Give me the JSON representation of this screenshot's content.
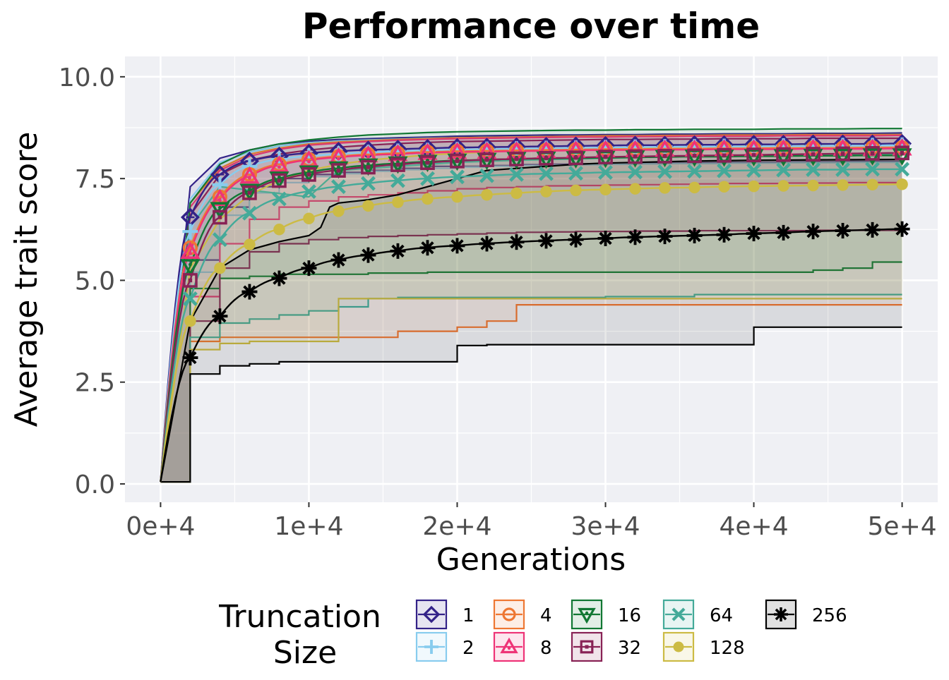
{
  "chart_data": {
    "type": "line",
    "title": "Performance over time",
    "xlabel": "Generations",
    "ylabel": "Average trait score",
    "xlim": [
      -2400,
      52400
    ],
    "ylim": [
      -0.45,
      10.5
    ],
    "x_ticks": [
      0,
      10000,
      20000,
      30000,
      40000,
      50000
    ],
    "x_tick_labels": [
      "0e+4",
      "1e+4",
      "2e+4",
      "3e+4",
      "4e+4",
      "5e+4"
    ],
    "y_ticks": [
      0,
      2.5,
      5,
      7.5,
      10
    ],
    "y_tick_labels": [
      "0.0",
      "2.5",
      "5.0",
      "7.5",
      "10.0"
    ],
    "grid": true,
    "legend": {
      "title_lines": [
        "Truncation",
        "Size"
      ],
      "placement": "bottom"
    },
    "x": [
      0,
      2000,
      4000,
      6000,
      8000,
      10000,
      12000,
      14000,
      16000,
      18000,
      20000,
      22000,
      24000,
      26000,
      28000,
      30000,
      32000,
      34000,
      36000,
      38000,
      40000,
      42000,
      44000,
      46000,
      48000,
      50000
    ],
    "series": [
      {
        "name": "1",
        "color": "#332288",
        "marker": "diamond",
        "values": [
          0.05,
          6.55,
          7.6,
          7.93,
          8.05,
          8.12,
          8.17,
          8.2,
          8.22,
          8.24,
          8.26,
          8.27,
          8.28,
          8.29,
          8.3,
          8.31,
          8.32,
          8.32,
          8.33,
          8.33,
          8.34,
          8.34,
          8.35,
          8.35,
          8.35,
          8.36
        ],
        "band_low": [
          0.05,
          5.5,
          6.8,
          7.3,
          7.5,
          7.6,
          7.65,
          7.7,
          7.75,
          7.8,
          7.8,
          7.82,
          7.84,
          7.85,
          7.86,
          7.87,
          7.88,
          7.88,
          7.89,
          7.9,
          7.9,
          7.91,
          7.91,
          7.92,
          7.92,
          7.92
        ],
        "band_high": [
          0.05,
          7.3,
          8.0,
          8.2,
          8.35,
          8.42,
          8.46,
          8.48,
          8.5,
          8.52,
          8.54,
          8.55,
          8.56,
          8.57,
          8.57,
          8.58,
          8.58,
          8.59,
          8.59,
          8.6,
          8.6,
          8.6,
          8.61,
          8.61,
          8.61,
          8.62
        ]
      },
      {
        "name": "2",
        "color": "#88ccee",
        "marker": "plus",
        "values": [
          0.05,
          6.2,
          7.35,
          7.8,
          7.97,
          8.05,
          8.1,
          8.14,
          8.17,
          8.19,
          8.21,
          8.22,
          8.23,
          8.24,
          8.25,
          8.26,
          8.27,
          8.28,
          8.28,
          8.29,
          8.29,
          8.3,
          8.3,
          8.31,
          8.31,
          8.32
        ],
        "band_low": [
          0.05,
          5.2,
          6.6,
          7.15,
          7.4,
          7.55,
          7.62,
          7.68,
          7.72,
          7.75,
          7.78,
          7.8,
          7.82,
          7.83,
          7.84,
          7.85,
          7.86,
          7.87,
          7.87,
          7.88,
          7.88,
          7.89,
          7.89,
          7.9,
          7.9,
          7.9
        ],
        "band_high": [
          0.05,
          7.0,
          7.9,
          8.15,
          8.3,
          8.38,
          8.42,
          8.45,
          8.47,
          8.49,
          8.5,
          8.51,
          8.52,
          8.53,
          8.54,
          8.54,
          8.55,
          8.55,
          8.56,
          8.56,
          8.56,
          8.57,
          8.57,
          8.57,
          8.58,
          8.58
        ]
      },
      {
        "name": "4",
        "color": "#ee7733",
        "marker": "circle-minus",
        "values": [
          0.05,
          5.8,
          7.05,
          7.6,
          7.85,
          7.97,
          8.04,
          8.09,
          8.12,
          8.15,
          8.17,
          8.18,
          8.19,
          8.2,
          8.21,
          8.22,
          8.22,
          8.23,
          8.23,
          8.24,
          8.24,
          8.25,
          8.25,
          8.25,
          8.26,
          8.26
        ],
        "band_low": [
          0.05,
          3.5,
          3.6,
          3.6,
          3.6,
          3.6,
          3.6,
          3.6,
          3.75,
          3.75,
          3.85,
          4.0,
          4.4,
          4.4,
          4.4,
          4.4,
          4.4,
          4.4,
          4.4,
          4.4,
          4.4,
          4.4,
          4.4,
          4.4,
          4.4,
          4.4
        ],
        "band_high": [
          0.05,
          6.9,
          7.75,
          8.1,
          8.25,
          8.35,
          8.4,
          8.43,
          8.46,
          8.48,
          8.5,
          8.51,
          8.52,
          8.53,
          8.54,
          8.55,
          8.55,
          8.56,
          8.56,
          8.57,
          8.57,
          8.57,
          8.58,
          8.58,
          8.58,
          8.58
        ]
      },
      {
        "name": "8",
        "color": "#ee3377",
        "marker": "triangle",
        "values": [
          0.05,
          5.7,
          7.0,
          7.55,
          7.82,
          7.95,
          8.02,
          8.07,
          8.1,
          8.13,
          8.15,
          8.16,
          8.17,
          8.18,
          8.19,
          8.2,
          8.2,
          8.21,
          8.21,
          8.22,
          8.22,
          8.22,
          8.23,
          8.23,
          8.23,
          8.24
        ],
        "band_low": [
          0.05,
          4.6,
          5.9,
          6.5,
          6.8,
          6.95,
          7.05,
          7.1,
          7.15,
          7.2,
          7.25,
          7.28,
          7.3,
          7.32,
          7.33,
          7.34,
          7.35,
          7.36,
          7.37,
          7.38,
          7.38,
          7.39,
          7.39,
          7.4,
          7.4,
          7.4
        ],
        "band_high": [
          0.05,
          6.8,
          7.7,
          8.05,
          8.22,
          8.32,
          8.37,
          8.41,
          8.44,
          8.46,
          8.48,
          8.49,
          8.5,
          8.51,
          8.52,
          8.52,
          8.53,
          8.53,
          8.54,
          8.54,
          8.54,
          8.55,
          8.55,
          8.55,
          8.55,
          8.56
        ]
      },
      {
        "name": "16",
        "color": "#117733",
        "marker": "triangle-down",
        "values": [
          0.05,
          5.35,
          6.75,
          7.2,
          7.5,
          7.65,
          7.75,
          7.82,
          7.87,
          7.91,
          7.94,
          7.96,
          7.98,
          7.99,
          8.0,
          8.01,
          8.02,
          8.03,
          8.04,
          8.04,
          8.05,
          8.05,
          8.06,
          8.06,
          8.07,
          8.07
        ],
        "band_low": [
          0.05,
          4.8,
          5.05,
          5.1,
          5.15,
          5.15,
          5.15,
          5.18,
          5.18,
          5.2,
          5.2,
          5.2,
          5.2,
          5.2,
          5.2,
          5.2,
          5.2,
          5.2,
          5.2,
          5.2,
          5.2,
          5.2,
          5.25,
          5.3,
          5.45,
          5.45
        ],
        "band_high": [
          0.05,
          6.9,
          7.85,
          8.2,
          8.35,
          8.45,
          8.52,
          8.57,
          8.6,
          8.63,
          8.65,
          8.66,
          8.67,
          8.68,
          8.69,
          8.69,
          8.7,
          8.7,
          8.71,
          8.71,
          8.71,
          8.72,
          8.72,
          8.72,
          8.73,
          8.73
        ]
      },
      {
        "name": "32",
        "color": "#882255",
        "marker": "square",
        "values": [
          0.05,
          5.0,
          6.55,
          7.15,
          7.45,
          7.6,
          7.7,
          7.78,
          7.84,
          7.89,
          7.93,
          7.96,
          7.98,
          8.0,
          8.01,
          8.03,
          8.04,
          8.05,
          8.06,
          8.07,
          8.08,
          8.09,
          8.1,
          8.11,
          8.12,
          8.13
        ],
        "band_low": [
          0.05,
          4.0,
          5.3,
          5.7,
          5.9,
          6.0,
          6.05,
          6.08,
          6.1,
          6.12,
          6.14,
          6.16,
          6.18,
          6.19,
          6.2,
          6.2,
          6.21,
          6.21,
          6.22,
          6.22,
          6.22,
          6.22,
          6.23,
          6.23,
          6.23,
          6.23
        ],
        "band_high": [
          0.05,
          6.6,
          7.6,
          7.95,
          8.1,
          8.2,
          8.27,
          8.32,
          8.36,
          8.39,
          8.41,
          8.42,
          8.43,
          8.44,
          8.45,
          8.46,
          8.46,
          8.47,
          8.47,
          8.48,
          8.48,
          8.48,
          8.49,
          8.49,
          8.49,
          8.49
        ]
      },
      {
        "name": "64",
        "color": "#44aa99",
        "marker": "x",
        "values": [
          0.05,
          4.55,
          6.0,
          6.65,
          7.0,
          7.18,
          7.3,
          7.38,
          7.45,
          7.5,
          7.54,
          7.57,
          7.6,
          7.62,
          7.63,
          7.65,
          7.66,
          7.67,
          7.68,
          7.69,
          7.7,
          7.71,
          7.72,
          7.72,
          7.73,
          7.73
        ],
        "band_low": [
          0.05,
          3.6,
          3.95,
          4.05,
          4.15,
          4.25,
          4.35,
          4.55,
          4.58,
          4.58,
          4.58,
          4.58,
          4.58,
          4.58,
          4.58,
          4.6,
          4.6,
          4.6,
          4.65,
          4.65,
          4.65,
          4.65,
          4.65,
          4.65,
          4.65,
          4.65
        ],
        "band_high": [
          0.05,
          6.3,
          7.3,
          7.65,
          7.85,
          7.98,
          8.05,
          8.1,
          8.14,
          8.17,
          8.2,
          8.22,
          8.24,
          8.25,
          8.26,
          8.27,
          8.28,
          8.29,
          8.3,
          8.3,
          8.31,
          8.31,
          8.32,
          8.32,
          8.33,
          8.33
        ],
        "upper_path": [
          [
            0,
            0.05
          ],
          [
            2000,
            6.3
          ],
          [
            4000,
            7.3
          ],
          [
            10000,
            7.05
          ],
          [
            11500,
            7.55
          ],
          [
            12000,
            7.7
          ],
          [
            14000,
            7.75
          ],
          [
            20000,
            7.9
          ],
          [
            24000,
            7.95
          ],
          [
            36000,
            8.05
          ],
          [
            50000,
            8.1
          ]
        ]
      },
      {
        "name": "128",
        "color": "#ccbb44",
        "marker": "dot",
        "values": [
          0.05,
          4.0,
          5.3,
          5.88,
          6.25,
          6.52,
          6.7,
          6.83,
          6.92,
          7.0,
          7.05,
          7.1,
          7.14,
          7.18,
          7.21,
          7.23,
          7.25,
          7.27,
          7.28,
          7.3,
          7.31,
          7.32,
          7.33,
          7.34,
          7.35,
          7.36
        ],
        "band_low": [
          0.05,
          3.3,
          3.45,
          3.5,
          3.5,
          3.5,
          4.55,
          4.55,
          4.55,
          4.55,
          4.55,
          4.55,
          4.55,
          4.55,
          4.55,
          4.55,
          4.55,
          4.55,
          4.55,
          4.55,
          4.55,
          4.55,
          4.55,
          4.55,
          4.55,
          4.55
        ],
        "band_high": [
          0.05,
          5.3,
          6.5,
          7.1,
          7.45,
          7.7,
          7.85,
          7.95,
          8.02,
          8.08,
          8.12,
          8.15,
          8.18,
          8.2,
          8.22,
          8.24,
          8.25,
          8.27,
          8.28,
          8.29,
          8.3,
          8.31,
          8.32,
          8.33,
          8.33,
          8.34
        ]
      },
      {
        "name": "256",
        "color": "#000000",
        "marker": "asterisk",
        "values": [
          0.05,
          3.1,
          4.12,
          4.72,
          5.05,
          5.3,
          5.5,
          5.62,
          5.72,
          5.8,
          5.85,
          5.9,
          5.94,
          5.97,
          6.0,
          6.03,
          6.06,
          6.08,
          6.1,
          6.12,
          6.15,
          6.17,
          6.2,
          6.22,
          6.24,
          6.26
        ],
        "band_low": [
          0.05,
          2.7,
          2.9,
          2.95,
          3.0,
          3.0,
          3.0,
          3.0,
          3.0,
          3.0,
          3.4,
          3.42,
          3.42,
          3.42,
          3.42,
          3.42,
          3.42,
          3.42,
          3.42,
          3.42,
          3.85,
          3.85,
          3.85,
          3.85,
          3.85,
          3.85
        ],
        "band_high": [
          0.05,
          4.0,
          5.3,
          5.75,
          5.95,
          6.1,
          6.9,
          6.98,
          7.1,
          7.3,
          7.5,
          7.7,
          7.75,
          7.8,
          7.85,
          7.88,
          7.9,
          7.92,
          7.93,
          7.95,
          7.95,
          7.96,
          7.96,
          7.97,
          7.97,
          7.97
        ],
        "upper_path": [
          [
            0,
            0.05
          ],
          [
            2000,
            4.0
          ],
          [
            4000,
            5.3
          ],
          [
            6000,
            5.75
          ],
          [
            8000,
            5.95
          ],
          [
            10000,
            6.1
          ],
          [
            10800,
            6.3
          ],
          [
            11400,
            6.8
          ],
          [
            12000,
            6.9
          ],
          [
            14000,
            6.98
          ],
          [
            16000,
            7.1
          ],
          [
            18000,
            7.3
          ],
          [
            20000,
            7.5
          ],
          [
            22000,
            7.7
          ],
          [
            24000,
            7.75
          ],
          [
            28000,
            7.85
          ],
          [
            30000,
            7.88
          ],
          [
            36000,
            7.93
          ],
          [
            40000,
            7.95
          ],
          [
            50000,
            7.97
          ]
        ]
      }
    ]
  }
}
